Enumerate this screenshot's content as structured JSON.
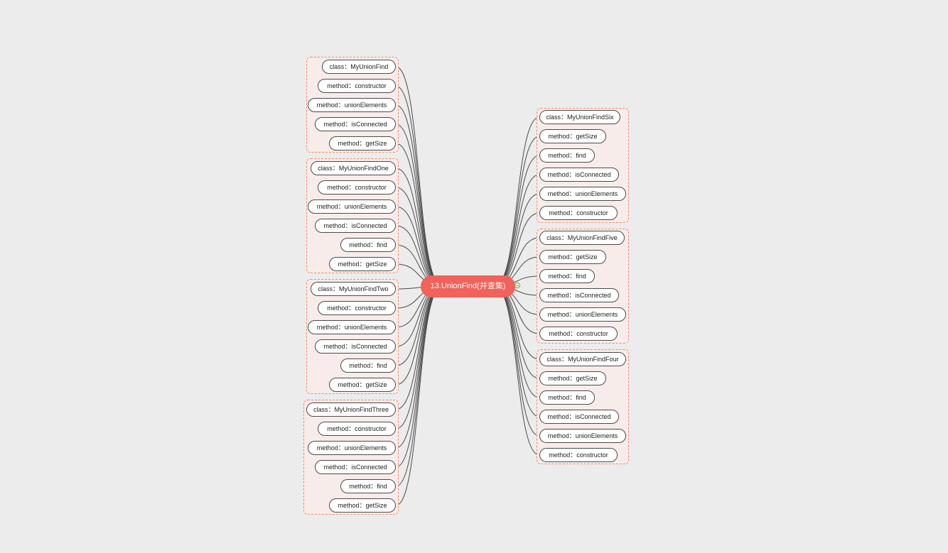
{
  "root": {
    "label": "13.UnionFind(并查集)"
  },
  "left_groups": [
    {
      "class_label": "class：MyUnionFind",
      "methods": [
        "method：constructor",
        "method：unionElements",
        "method：isConnected",
        "method：getSize"
      ]
    },
    {
      "class_label": "class：MyUnionFindOne",
      "methods": [
        "method：constructor",
        "method：unionElements",
        "method：isConnected",
        "method：find",
        "method：getSize"
      ]
    },
    {
      "class_label": "class：MyUnionFindTwo",
      "methods": [
        "method：constructor",
        "method：unionElements",
        "method：isConnected",
        "method：find",
        "method：getSize"
      ]
    },
    {
      "class_label": "class：MyUnionFindThree",
      "methods": [
        "method：constructor",
        "method：unionElements",
        "method：isConnected",
        "method：find",
        "method：getSize"
      ]
    }
  ],
  "right_groups": [
    {
      "class_label": "class：MyUnionFindSix",
      "methods": [
        "method：getSize",
        "method：find",
        "method：isConnected",
        "method：unionElements",
        "method：constructor"
      ]
    },
    {
      "class_label": "class：MyUnionFindFive",
      "methods": [
        "method：getSize",
        "method：find",
        "method：isConnected",
        "method：unionElements",
        "method：constructor"
      ]
    },
    {
      "class_label": "class：MyUnionFindFour",
      "methods": [
        "method：getSize",
        "method：find",
        "method：isConnected",
        "method：unionElements",
        "method：constructor"
      ]
    }
  ],
  "colors": {
    "background": "#ececec",
    "root_fill": "#f0625a",
    "group_border": "#ef8a6d",
    "group_fill": "#f7ece9",
    "link": "#4a4a4a",
    "toggle": "#58a83f"
  }
}
